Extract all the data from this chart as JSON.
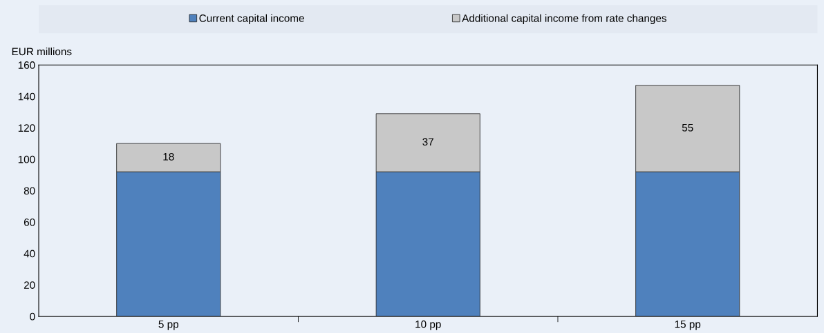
{
  "chart_data": {
    "type": "bar",
    "stacked": true,
    "ylabel": "EUR millions",
    "categories": [
      "5 pp",
      "10 pp",
      "15 pp"
    ],
    "series": [
      {
        "name": "Current capital income",
        "color": "#4f81bd",
        "values": [
          92,
          92,
          92
        ]
      },
      {
        "name": "Additional capital income from rate changes",
        "color": "#c8c8c8",
        "values": [
          18,
          37,
          55
        ],
        "value_labels": [
          "18",
          "37",
          "55"
        ]
      }
    ],
    "ylim": [
      0,
      160
    ],
    "yticks": [
      0,
      20,
      40,
      60,
      80,
      100,
      120,
      140,
      160
    ],
    "grid": false,
    "legend": "top"
  }
}
